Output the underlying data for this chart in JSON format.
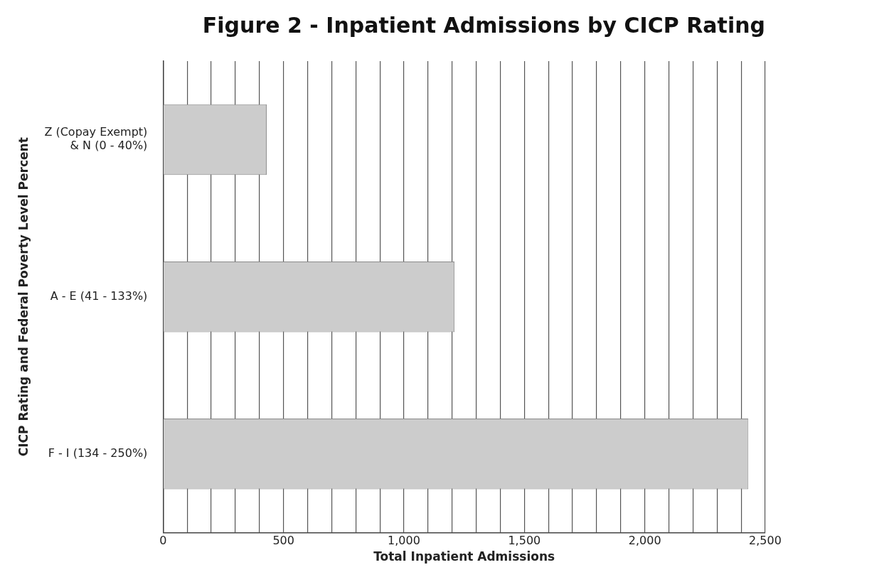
{
  "chart_data": {
    "type": "bar",
    "orientation": "horizontal",
    "title": "Figure 2 - Inpatient Admissions by CICP Rating",
    "xlabel": "Total Inpatient Admissions",
    "ylabel": "CICP Rating and Federal Poverty Level Percent",
    "categories": [
      "Z (Copay Exempt) & N (0 - 40%)",
      "A - E (41 - 133%)",
      "F - I (134 - 250%)"
    ],
    "values": [
      430,
      1210,
      2430
    ],
    "color": "#cccccc",
    "xlim": [
      0,
      2500
    ],
    "xticks": [
      0,
      {
        "value": 100,
        "label": null
      },
      {
        "value": 200,
        "label": null
      },
      {
        "value": 300,
        "label": null
      },
      {
        "value": 400,
        "label": null
      },
      {
        "value": 500,
        "label": "500"
      },
      {
        "value": 600,
        "label": null
      },
      {
        "value": 700,
        "label": null
      },
      {
        "value": 800,
        "label": null
      },
      {
        "value": 900,
        "label": null
      },
      {
        "value": 1000,
        "label": "1,000"
      },
      {
        "value": 1100,
        "label": null
      },
      {
        "value": 1200,
        "label": null
      },
      {
        "value": 1300,
        "label": null
      },
      {
        "value": 1400,
        "label": null
      },
      {
        "value": 1500,
        "label": "1,500"
      },
      {
        "value": 1600,
        "label": null
      },
      {
        "value": 1700,
        "label": null
      },
      {
        "value": 1800,
        "label": null
      },
      {
        "value": 1900,
        "label": null
      },
      {
        "value": 2000,
        "label": "2,000"
      },
      {
        "value": 2100,
        "label": null
      },
      {
        "value": 2200,
        "label": null
      },
      {
        "value": 2300,
        "label": null
      },
      {
        "value": 2400,
        "label": null
      },
      {
        "value": 2500,
        "label": "2,500"
      }
    ],
    "grid": "x",
    "legend": false
  }
}
